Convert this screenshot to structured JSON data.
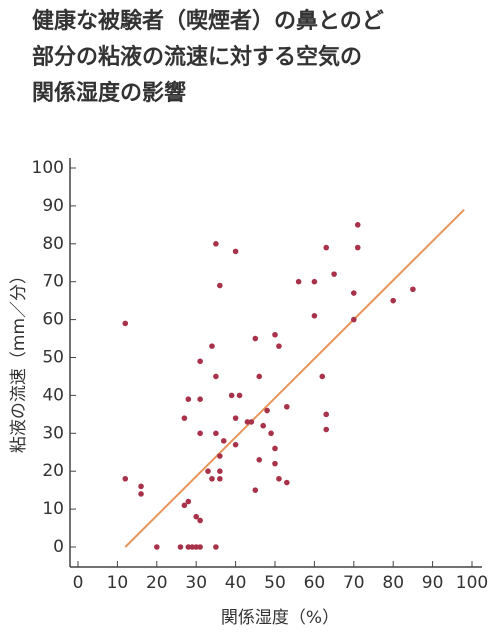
{
  "chart_data": {
    "type": "scatter",
    "title": [
      "健康な被験者（喫煙者）の鼻とのど",
      "部分の粘液の流速に対する空気の",
      "関係湿度の影響"
    ],
    "x_label": "関係湿度（%）",
    "y_label": "粘液の流速（mm／分）",
    "color": "#a8324a",
    "x": [
      12,
      12,
      20,
      16,
      16,
      26,
      27,
      28,
      28,
      29,
      30,
      31,
      28,
      27,
      30,
      31,
      31,
      31,
      31,
      34,
      33,
      34,
      35,
      35,
      35,
      36,
      36,
      36,
      37,
      35,
      36,
      40,
      39,
      40,
      41,
      40,
      43,
      44,
      45,
      46,
      46,
      45,
      47,
      48,
      49,
      50,
      50,
      51,
      50,
      51,
      53,
      53,
      56,
      60,
      60,
      62,
      63,
      63,
      63,
      65,
      70,
      70,
      71,
      71,
      80,
      85
    ],
    "y": [
      59,
      18,
      0,
      16,
      14,
      0,
      11,
      0,
      12,
      0,
      0,
      0,
      39,
      34,
      8,
      7,
      39,
      30,
      49,
      53,
      20,
      18,
      30,
      45,
      0,
      18,
      20,
      24,
      28,
      80,
      69,
      78,
      40,
      34,
      40,
      27,
      33,
      33,
      55,
      45,
      23,
      15,
      32,
      36,
      30,
      26,
      56,
      53,
      22,
      18,
      37,
      17,
      70,
      70,
      61,
      45,
      35,
      31,
      79,
      72,
      67,
      60,
      85,
      79,
      65,
      68
    ],
    "trend_line": {
      "color": "#e8945a",
      "x": [
        12,
        98
      ],
      "y": [
        0,
        89
      ]
    },
    "xlim": [
      0,
      100
    ],
    "ylim": [
      0,
      100
    ],
    "xticks": [
      0,
      10,
      20,
      30,
      40,
      50,
      60,
      70,
      80,
      90,
      100
    ],
    "yticks": [
      0,
      10,
      20,
      30,
      40,
      50,
      60,
      70,
      80,
      90,
      100
    ]
  }
}
